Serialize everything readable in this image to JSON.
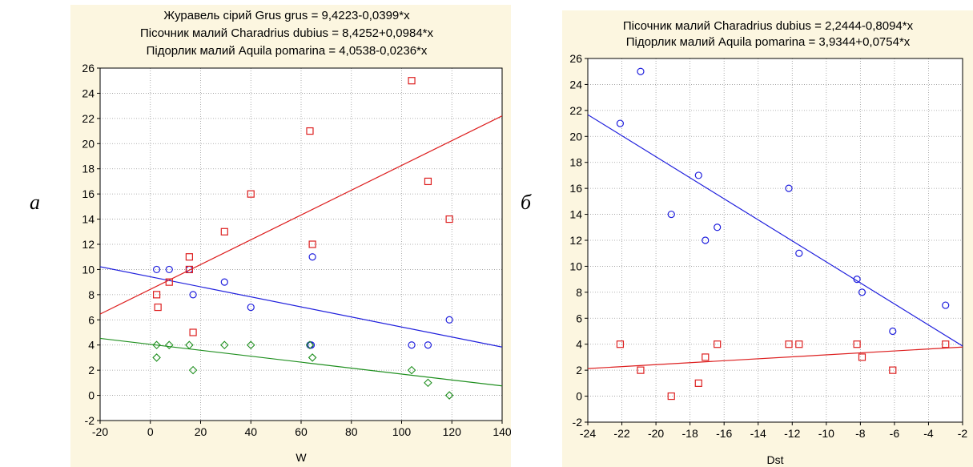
{
  "panel_labels": [
    "а",
    "б"
  ],
  "chart_data": [
    {
      "type": "scatter",
      "title_lines": [
        "Журавель сірий Grus grus = 9,4223-0,0399*x",
        "Пісочник малий Charadrius dubius = 8,4252+0,0984*x",
        "Підорлик малий Aquila pomarina = 4,0538-0,0236*x"
      ],
      "xlabel": "W",
      "ylabel": "",
      "xlim": [
        -20,
        140
      ],
      "ylim": [
        -2,
        26
      ],
      "x_ticks": [
        -20,
        0,
        20,
        40,
        60,
        80,
        100,
        120,
        140
      ],
      "y_ticks": [
        -2,
        0,
        2,
        4,
        6,
        8,
        10,
        12,
        14,
        16,
        18,
        20,
        22,
        24,
        26
      ],
      "grid": true,
      "series": [
        {
          "color": "#1f1fdd",
          "marker": "circle",
          "intercept": 9.4223,
          "slope": -0.0399,
          "points": [
            [
              2.5,
              10
            ],
            [
              7.5,
              10
            ],
            [
              15.5,
              10
            ],
            [
              17,
              8
            ],
            [
              29.5,
              9
            ],
            [
              40,
              7
            ],
            [
              63.5,
              4
            ],
            [
              64,
              4
            ],
            [
              64.5,
              11
            ],
            [
              104,
              4
            ],
            [
              110.5,
              4
            ],
            [
              119,
              6
            ]
          ]
        },
        {
          "color": "#dd1f1f",
          "marker": "square",
          "intercept": 8.4252,
          "slope": 0.0984,
          "points": [
            [
              2.5,
              8
            ],
            [
              3,
              7
            ],
            [
              7.5,
              9
            ],
            [
              15.5,
              11
            ],
            [
              15.5,
              10
            ],
            [
              17,
              5
            ],
            [
              29.5,
              13
            ],
            [
              40,
              16
            ],
            [
              63.5,
              21
            ],
            [
              64.5,
              12
            ],
            [
              104,
              25
            ],
            [
              110.5,
              17
            ],
            [
              119,
              14
            ]
          ]
        },
        {
          "color": "#1f8f1f",
          "marker": "diamond",
          "intercept": 4.0538,
          "slope": -0.0236,
          "points": [
            [
              2.5,
              4
            ],
            [
              2.5,
              3
            ],
            [
              7.5,
              4
            ],
            [
              15.5,
              4
            ],
            [
              17,
              2
            ],
            [
              29.5,
              4
            ],
            [
              40,
              4
            ],
            [
              63.5,
              4
            ],
            [
              64.5,
              3
            ],
            [
              104,
              2
            ],
            [
              110.5,
              1
            ],
            [
              119,
              0
            ]
          ]
        }
      ]
    },
    {
      "type": "scatter",
      "title_lines": [
        "Пісочник малий Charadrius dubius = 2,2444-0,8094*x",
        "Підорлик малий Aquila pomarina = 3,9344+0,0754*x"
      ],
      "xlabel": "Dst",
      "ylabel": "",
      "xlim": [
        -24,
        -2
      ],
      "ylim": [
        -2,
        26
      ],
      "x_ticks": [
        -24,
        -22,
        -20,
        -18,
        -16,
        -14,
        -12,
        -10,
        -8,
        -6,
        -4,
        -2
      ],
      "y_ticks": [
        -2,
        0,
        2,
        4,
        6,
        8,
        10,
        12,
        14,
        16,
        18,
        20,
        22,
        24,
        26
      ],
      "grid": true,
      "series": [
        {
          "color": "#1f1fdd",
          "marker": "circle",
          "intercept": 2.2444,
          "slope": -0.8094,
          "points": [
            [
              -22.1,
              21
            ],
            [
              -20.9,
              25
            ],
            [
              -19.1,
              14
            ],
            [
              -17.5,
              17
            ],
            [
              -17.1,
              12
            ],
            [
              -16.4,
              13
            ],
            [
              -12.2,
              16
            ],
            [
              -11.6,
              11
            ],
            [
              -8.2,
              9
            ],
            [
              -7.9,
              8
            ],
            [
              -6.1,
              5
            ],
            [
              -3,
              7
            ]
          ]
        },
        {
          "color": "#dd1f1f",
          "marker": "square",
          "intercept": 3.9344,
          "slope": 0.0754,
          "points": [
            [
              -22.1,
              4
            ],
            [
              -20.9,
              2
            ],
            [
              -19.1,
              0
            ],
            [
              -17.5,
              1
            ],
            [
              -17.1,
              3
            ],
            [
              -16.4,
              4
            ],
            [
              -12.2,
              4
            ],
            [
              -11.6,
              4
            ],
            [
              -8.2,
              4
            ],
            [
              -7.9,
              3
            ],
            [
              -6.1,
              2
            ],
            [
              -3,
              4
            ]
          ]
        }
      ]
    }
  ]
}
